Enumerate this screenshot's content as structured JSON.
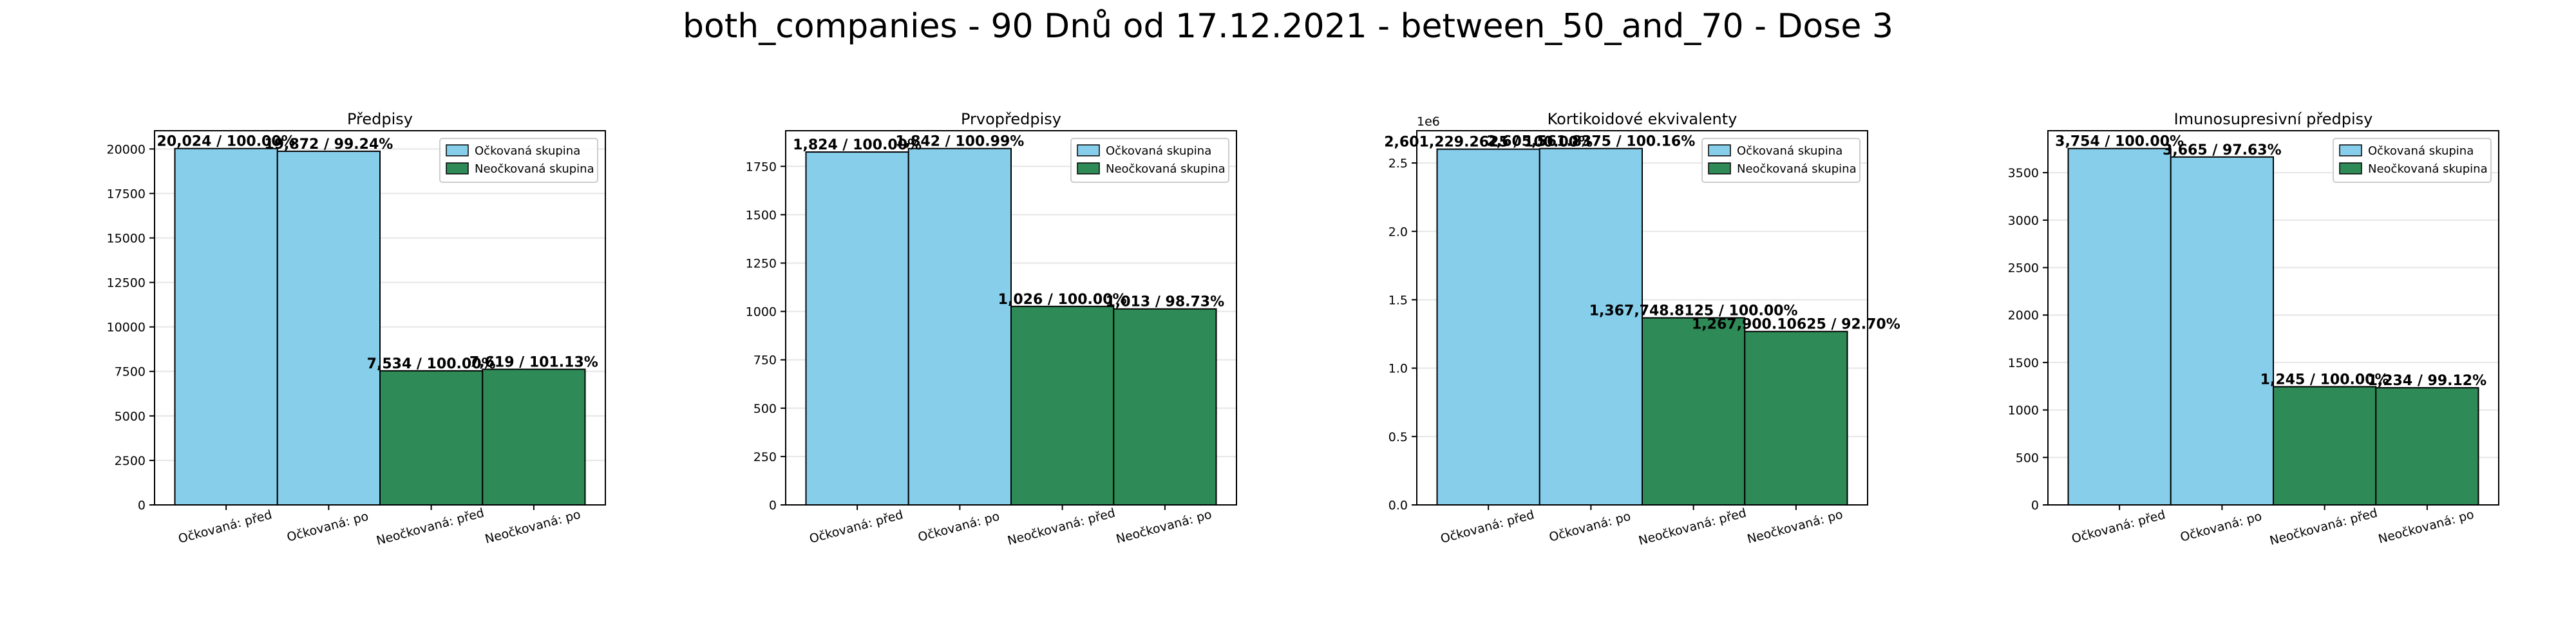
{
  "figure": {
    "title": "both_companies - 90 Dnů od 17.12.2021 - between_50_and_70 - Dose 3"
  },
  "legend": {
    "vaccinated": "Očkovaná skupina",
    "unvaccinated": "Neočkovaná skupina"
  },
  "colors": {
    "vaccinated": "#87ceeb",
    "unvaccinated": "#2e8b57",
    "edge": "#000000",
    "grid": "#e6e6e6"
  },
  "chart_data": [
    {
      "type": "bar",
      "title": "Předpisy",
      "categories": [
        "Očkovaná: před",
        "Očkovaná: po",
        "Neočkovaná: před",
        "Neočkovaná: po"
      ],
      "values": [
        20024,
        19872,
        7534,
        7619
      ],
      "labels": [
        "20,024 / 100.00%",
        "19,872 / 99.24%",
        "7,534 / 100.00%",
        "7,619 / 101.13%"
      ],
      "groups": [
        "vaccinated",
        "vaccinated",
        "unvaccinated",
        "unvaccinated"
      ],
      "ylim": [
        0,
        21025.2
      ],
      "yticks": [
        0,
        2500,
        5000,
        7500,
        10000,
        12500,
        15000,
        17500,
        20000
      ],
      "ytick_labels": [
        "0",
        "2500",
        "5000",
        "7500",
        "10000",
        "12500",
        "15000",
        "17500",
        "20000"
      ],
      "scale_label": "",
      "grid": true,
      "legend_position": "top-right"
    },
    {
      "type": "bar",
      "title": "Prvopředpisy",
      "categories": [
        "Očkovaná: před",
        "Očkovaná: po",
        "Neočkovaná: před",
        "Neočkovaná: po"
      ],
      "values": [
        1824,
        1842,
        1026,
        1013
      ],
      "labels": [
        "1,824 / 100.00%",
        "1,842 / 100.99%",
        "1,026 / 100.00%",
        "1,013 / 98.73%"
      ],
      "groups": [
        "vaccinated",
        "vaccinated",
        "unvaccinated",
        "unvaccinated"
      ],
      "ylim": [
        0,
        1934.1
      ],
      "yticks": [
        0,
        250,
        500,
        750,
        1000,
        1250,
        1500,
        1750
      ],
      "ytick_labels": [
        "0",
        "250",
        "500",
        "750",
        "1000",
        "1250",
        "1500",
        "1750"
      ],
      "scale_label": "",
      "grid": true,
      "legend_position": "top-right"
    },
    {
      "type": "bar",
      "title": "Kortikoidové ekvivalenty",
      "categories": [
        "Očkovaná: před",
        "Očkovaná: po",
        "Neočkovaná: před",
        "Neočkovaná: po"
      ],
      "values": [
        2601229.2625,
        2605561.8375,
        1367748.8125,
        1267900.10625
      ],
      "labels": [
        "2,601,229.2625 / 100.00%",
        "2,605,561.8375 / 100.16%",
        "1,367,748.8125 / 100.00%",
        "1,267,900.10625 / 92.70%"
      ],
      "groups": [
        "vaccinated",
        "vaccinated",
        "unvaccinated",
        "unvaccinated"
      ],
      "ylim": [
        0,
        2735839.93
      ],
      "yticks": [
        0,
        500000,
        1000000,
        1500000,
        2000000,
        2500000
      ],
      "ytick_labels": [
        "0.0",
        "0.5",
        "1.0",
        "1.5",
        "2.0",
        "2.5"
      ],
      "scale_label": "1e6",
      "grid": true,
      "legend_position": "top-right"
    },
    {
      "type": "bar",
      "title": "Imunosupresivní předpisy",
      "categories": [
        "Očkovaná: před",
        "Očkovaná: po",
        "Neočkovaná: před",
        "Neočkovaná: po"
      ],
      "values": [
        3754,
        3665,
        1245,
        1234
      ],
      "labels": [
        "3,754 / 100.00%",
        "3,665 / 97.63%",
        "1,245 / 100.00%",
        "1,234 / 99.12%"
      ],
      "groups": [
        "vaccinated",
        "vaccinated",
        "unvaccinated",
        "unvaccinated"
      ],
      "ylim": [
        0,
        3941.7
      ],
      "yticks": [
        0,
        500,
        1000,
        1500,
        2000,
        2500,
        3000,
        3500
      ],
      "ytick_labels": [
        "0",
        "500",
        "1000",
        "1500",
        "2000",
        "2500",
        "3000",
        "3500"
      ],
      "scale_label": "",
      "grid": true,
      "legend_position": "top-right"
    }
  ]
}
